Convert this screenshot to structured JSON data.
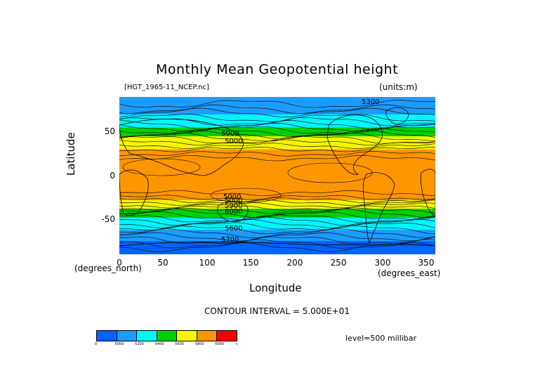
{
  "title": "Monthly Mean Geopotential height",
  "file_label": "[HGT_1965-11_NCEP.nc]",
  "units": "(units:m)",
  "y_axis_title": "Latitude",
  "x_axis_title": "Longitude",
  "x_axis_note": "(degrees_east)",
  "y_axis_note": "(degrees_north)",
  "contour_interval": "CONTOUR INTERVAL = 5.000E+01",
  "level": "level=500 millibar",
  "x_ticks": [
    "0",
    "50",
    "100",
    "150",
    "200",
    "250",
    "300",
    "350"
  ],
  "y_ticks": [
    "50",
    "0",
    "-50"
  ],
  "contour_labels": [
    "5300",
    "5000",
    "5000",
    "5000",
    "5000",
    "5900",
    "6000",
    "5600",
    "5700"
  ],
  "colorbar": {
    "colors": [
      "#0064ff",
      "#1e9bff",
      "#00f5ff",
      "#00d200",
      "#f5f500",
      "#ff9600",
      "#f00000"
    ],
    "labels": [
      "0",
      "5000",
      "5200",
      "5400",
      "5600",
      "5800",
      "6000",
      "∞"
    ]
  },
  "chart_data": {
    "type": "heatmap",
    "title": "Monthly Mean Geopotential height",
    "xlabel": "Longitude",
    "ylabel": "Latitude",
    "units": "m",
    "level": "500 millibar",
    "xlim": [
      0,
      360
    ],
    "ylim": [
      -90,
      90
    ],
    "x_ticks": [
      0,
      50,
      100,
      150,
      200,
      250,
      300,
      350
    ],
    "y_ticks": [
      -50,
      0,
      50
    ],
    "contour_interval": 50,
    "bins": [
      0,
      5000,
      5200,
      5400,
      5600,
      5800,
      6000
    ],
    "bands": [
      {
        "lat_from": 90,
        "lat_to": 70,
        "value": 5100
      },
      {
        "lat_from": 70,
        "lat_to": 55,
        "value": 5300
      },
      {
        "lat_from": 55,
        "lat_to": 45,
        "value": 5500
      },
      {
        "lat_from": 45,
        "lat_to": 30,
        "value": 5700
      },
      {
        "lat_from": 30,
        "lat_to": -20,
        "value": 5850
      },
      {
        "lat_from": -20,
        "lat_to": -28,
        "value": 5850
      },
      {
        "lat_from": -28,
        "lat_to": -38,
        "value": 5700
      },
      {
        "lat_from": -38,
        "lat_to": -48,
        "value": 5500
      },
      {
        "lat_from": -48,
        "lat_to": -62,
        "value": 5300
      },
      {
        "lat_from": -62,
        "lat_to": -75,
        "value": 5100
      },
      {
        "lat_from": -75,
        "lat_to": -90,
        "value": 4950
      }
    ]
  }
}
